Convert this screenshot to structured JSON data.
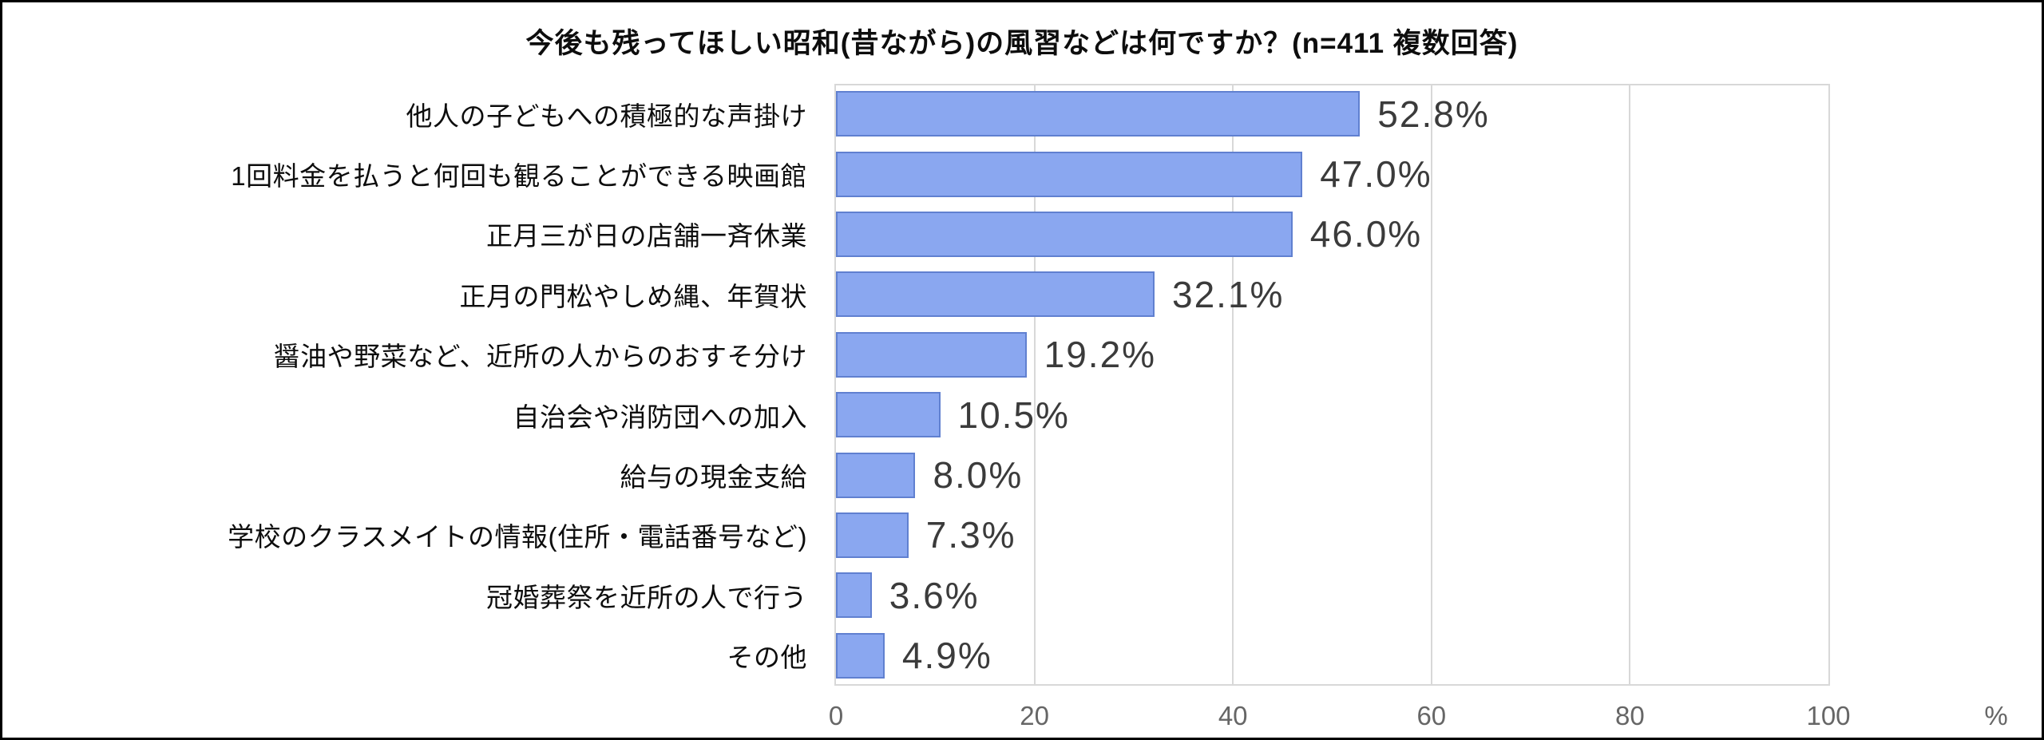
{
  "title": "今後も残ってほしい昭和(昔ながら)の風習などは何ですか？(n=411 複数回答)",
  "chart_data": {
    "type": "bar",
    "orientation": "horizontal",
    "title": "今後も残ってほしい昭和(昔ながら)の風習などは何ですか？(n=411 複数回答)",
    "categories": [
      "他人の子どもへの積極的な声掛け",
      "1回料金を払うと何回も観ることができる映画館",
      "正月三が日の店舗一斉休業",
      "正月の門松やしめ縄、年賀状",
      "醤油や野菜など、近所の人からのおすそ分け",
      "自治会や消防団への加入",
      "給与の現金支給",
      "学校のクラスメイトの情報(住所・電話番号など)",
      "冠婚葬祭を近所の人で行う",
      "その他"
    ],
    "values": [
      52.8,
      47.0,
      46.0,
      32.1,
      19.2,
      10.5,
      8.0,
      7.3,
      3.6,
      4.9
    ],
    "value_labels": [
      "52.8%",
      "47.0%",
      "46.0%",
      "32.1%",
      "19.2%",
      "10.5%",
      "8.0%",
      "7.3%",
      "3.6%",
      "4.9%"
    ],
    "xlabel": "%",
    "xlim": [
      0,
      100
    ],
    "xticks": [
      0,
      20,
      40,
      60,
      80,
      100
    ],
    "grid": "vertical-gridlines-on",
    "legend": "none",
    "sample_note": "n=411 複数回答",
    "colors": {
      "bar_fill": "#8aa7f0",
      "bar_border": "#6080d0",
      "gridline": "#d8d8d8",
      "plot_border": "#d8d8d8",
      "title_text": "#0d0d0d",
      "category_text": "#0d0d0d",
      "value_text": "#3b3b3b",
      "tick_text": "#666666",
      "frame_border": "#000000",
      "background": "#ffffff"
    }
  }
}
